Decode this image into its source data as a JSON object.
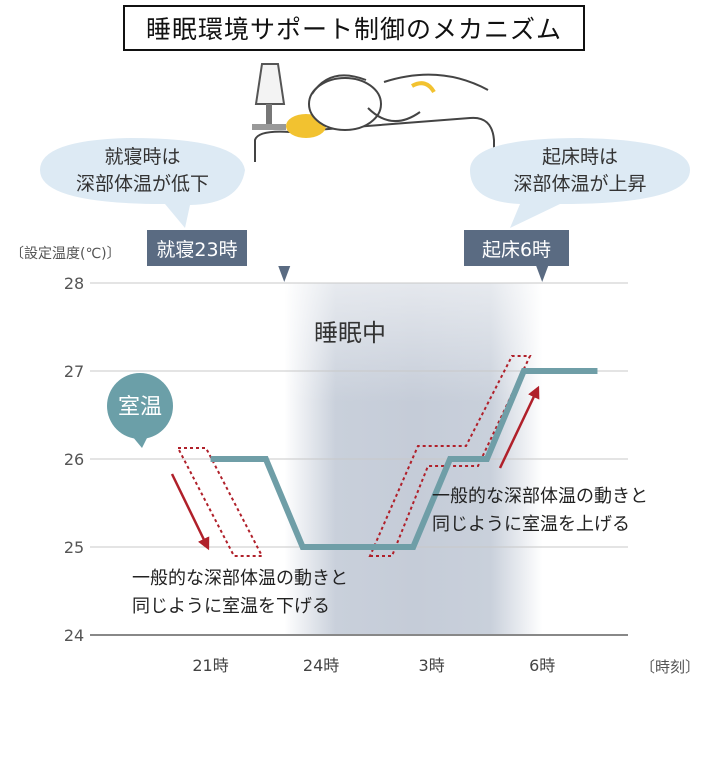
{
  "title": "睡眠環境サポート制御のメカニズム",
  "colors": {
    "line": "#6f9ea7",
    "arrow": "#b0202a",
    "badge": "#5a6b82",
    "bubble": "#ddeaf4",
    "band": "#c5ccd8"
  },
  "bubbles": {
    "left": {
      "line1": "就寝時は",
      "line2": "深部体温が低下"
    },
    "right": {
      "line1": "起床時は",
      "line2": "深部体温が上昇"
    }
  },
  "badges": {
    "bedtime": "就寝23時",
    "wake": "起床6時"
  },
  "room_label": "室温",
  "sleep_label": "睡眠中",
  "annotations": {
    "down": {
      "line1": "一般的な深部体温の動きと",
      "line2": "同じように室温を下げる"
    },
    "up": {
      "line1": "一般的な深部体温の動きと",
      "line2": "同じように室温を上げる"
    }
  },
  "chart_data": {
    "type": "line",
    "title": "睡眠環境サポート制御のメカニズム",
    "ylabel": "〔設定温度(℃)〕",
    "xlabel": "〔時刻〕",
    "ylim": [
      24,
      28
    ],
    "yticks": [
      "24",
      "25",
      "26",
      "27",
      "28"
    ],
    "xticks": [
      {
        "label": "21時",
        "x": 21
      },
      {
        "label": "24時",
        "x": 24
      },
      {
        "label": "3時",
        "x": 27
      },
      {
        "label": "6時",
        "x": 30
      }
    ],
    "sleep_band": [
      23,
      30
    ],
    "series": [
      {
        "name": "室温",
        "points": [
          [
            21,
            26
          ],
          [
            22.5,
            26
          ],
          [
            23.5,
            25
          ],
          [
            26.5,
            25
          ],
          [
            27.5,
            26
          ],
          [
            28.5,
            26
          ],
          [
            29.5,
            27
          ],
          [
            31.5,
            27
          ]
        ]
      }
    ]
  }
}
